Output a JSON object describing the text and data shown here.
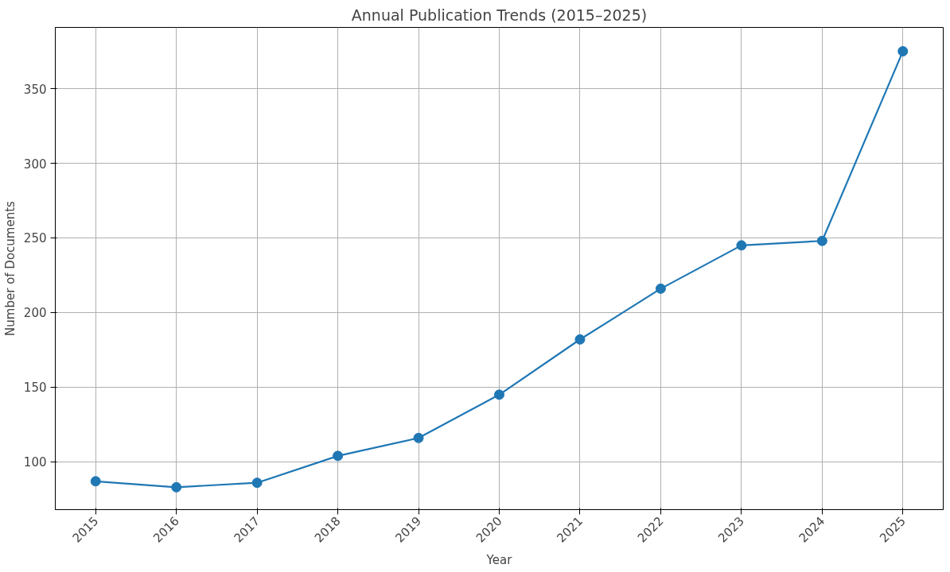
{
  "chart_data": {
    "type": "line",
    "title": "Annual Publication Trends (2015–2025)",
    "xlabel": "Year",
    "ylabel": "Number of Documents",
    "x": [
      2015,
      2016,
      2017,
      2018,
      2019,
      2020,
      2021,
      2022,
      2023,
      2024,
      2025
    ],
    "series": [
      {
        "color": "#1f77b4",
        "values": [
          87,
          83,
          86,
          104,
          116,
          145,
          182,
          216,
          245,
          248,
          375
        ]
      }
    ],
    "xlim": [
      2014.5,
      2025.5
    ],
    "xticks": [
      2015,
      2016,
      2017,
      2018,
      2019,
      2020,
      2021,
      2022,
      2023,
      2024,
      2025
    ],
    "ylim": [
      68,
      391
    ],
    "yticks": [
      100,
      150,
      200,
      250,
      300,
      350
    ],
    "grid": true,
    "marker": "circle",
    "line_style": "solid"
  }
}
